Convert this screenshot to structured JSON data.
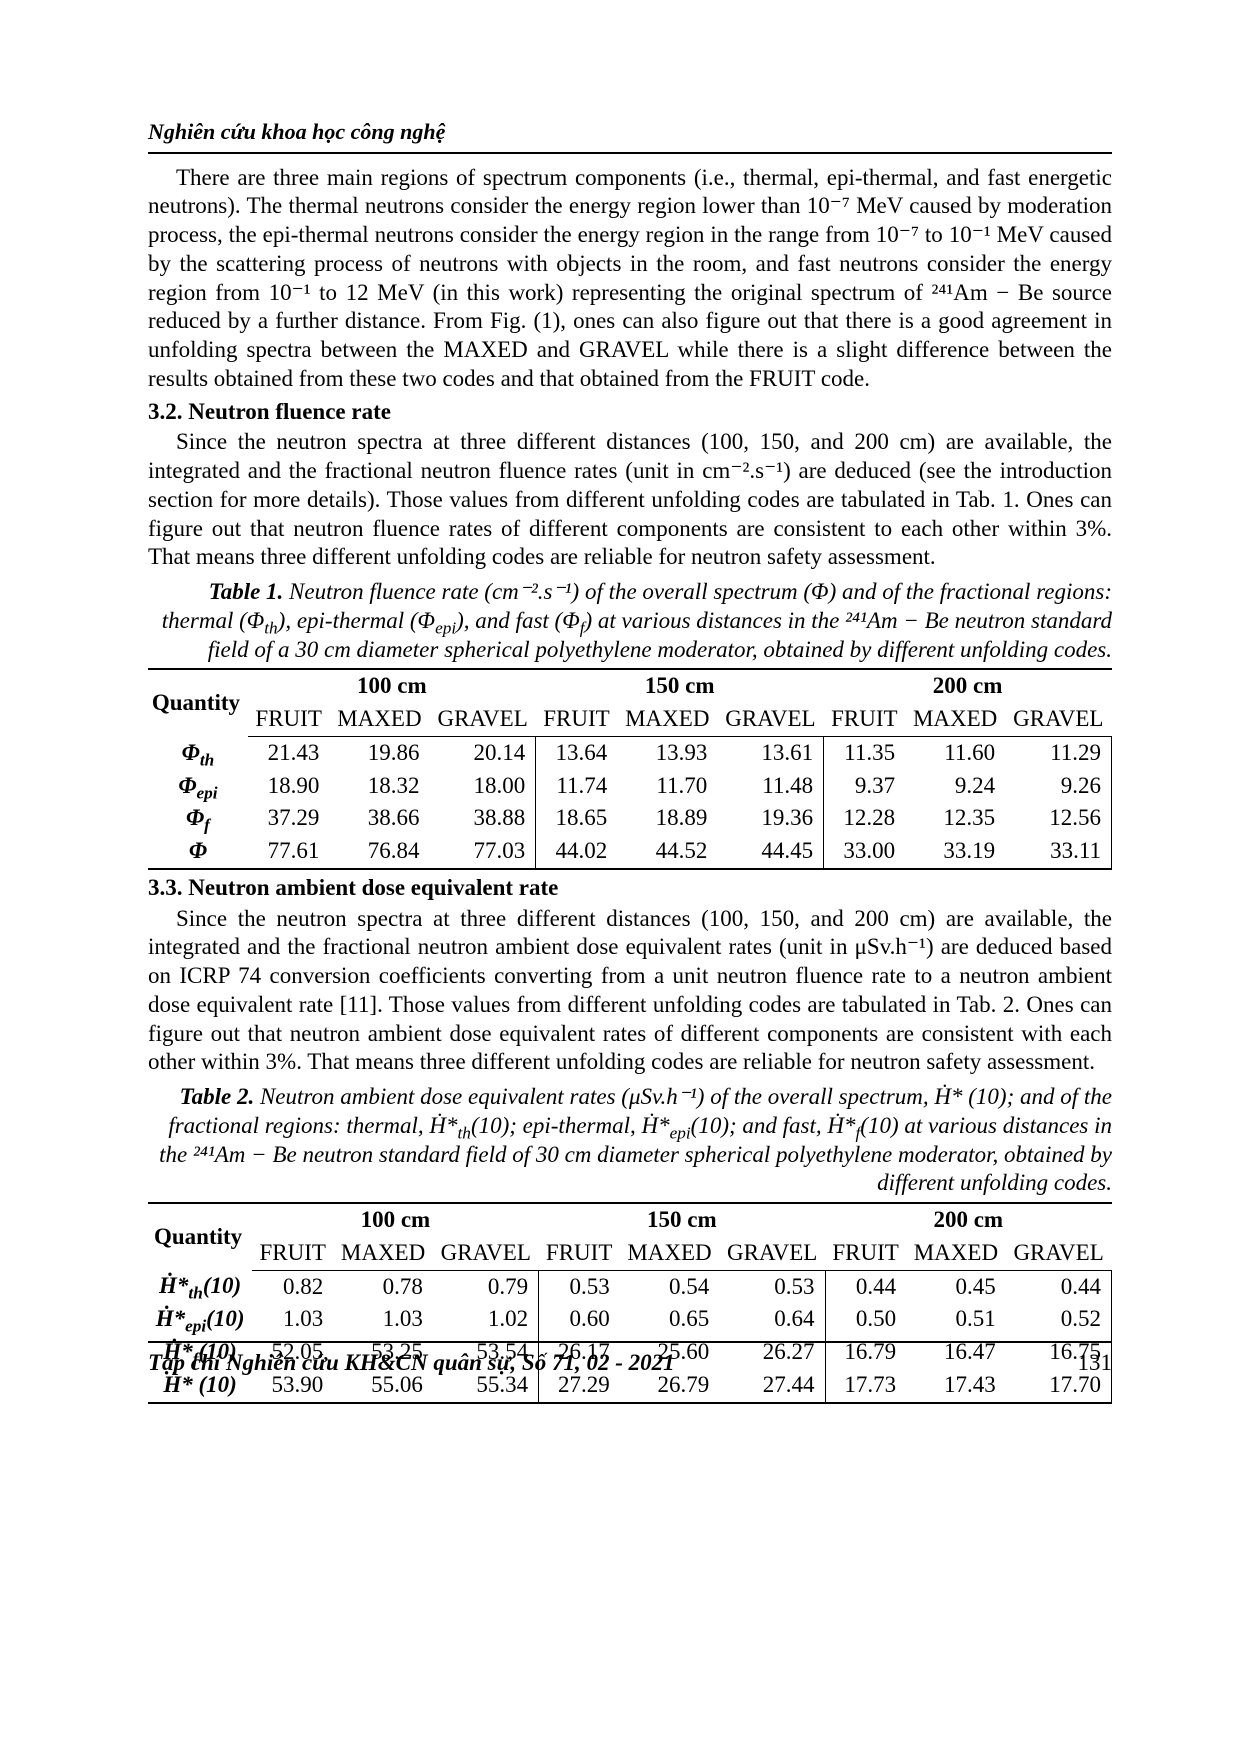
{
  "header": "Nghiên cứu khoa học công nghệ",
  "para1": "There are three main regions of spectrum components (i.e., thermal, epi-thermal, and fast energetic neutrons). The thermal neutrons consider the energy region lower than 10⁻⁷ MeV caused by moderation process, the epi-thermal neutrons consider the energy region in the range from 10⁻⁷ to 10⁻¹ MeV caused by the scattering process of neutrons with objects in the room, and fast neutrons consider the energy region from 10⁻¹ to 12 MeV (in this work) representing the original spectrum of ²⁴¹Am − Be source reduced by a further distance. From Fig. (1), ones can also figure out that there is a good agreement in unfolding spectra between the MAXED and GRAVEL while there is a slight difference between the results obtained from these two codes and that obtained from the FRUIT code.",
  "sec32_head": "3.2. Neutron fluence rate",
  "sec32_para": "Since the neutron spectra at three different distances (100, 150, and 200 cm) are available, the integrated and the fractional neutron fluence rates (unit in cm⁻².s⁻¹) are deduced (see the introduction section for more details). Those values from different unfolding codes are tabulated in Tab. 1. Ones can figure out that neutron fluence rates of different components are consistent to each other within 3%. That means three different unfolding codes are reliable for neutron safety assessment.",
  "table1_caption_html": "<span class='lead'>Table 1.</span> Neutron fluence rate (cm⁻².s⁻¹) of the overall spectrum (Φ) and of the fractional regions: thermal (Φ<sub>th</sub>), epi-thermal (Φ<sub>epi</sub>), and fast (Φ<sub>f</sub>) at various distances in the ²⁴¹Am − Be neutron standard field of a 30 cm diameter spherical polyethylene moderator, obtained by different unfolding codes.",
  "distances": [
    "100 cm",
    "150 cm",
    "200 cm"
  ],
  "codes": [
    "FRUIT",
    "MAXED",
    "GRAVEL"
  ],
  "quantity_label": "Quantity",
  "table1": {
    "row_labels_html": [
      "Φ<sub>th</sub>",
      "Φ<sub>epi</sub>",
      "Φ<sub>f</sub>",
      "Φ"
    ],
    "rows": [
      [
        "21.43",
        "19.86",
        "20.14",
        "13.64",
        "13.93",
        "13.61",
        "11.35",
        "11.60",
        "11.29"
      ],
      [
        "18.90",
        "18.32",
        "18.00",
        "11.74",
        "11.70",
        "11.48",
        "9.37",
        "9.24",
        "9.26"
      ],
      [
        "37.29",
        "38.66",
        "38.88",
        "18.65",
        "18.89",
        "19.36",
        "12.28",
        "12.35",
        "12.56"
      ],
      [
        "77.61",
        "76.84",
        "77.03",
        "44.02",
        "44.52",
        "44.45",
        "33.00",
        "33.19",
        "33.11"
      ]
    ]
  },
  "sec33_head": "3.3. Neutron ambient dose equivalent rate",
  "sec33_para": "Since the neutron spectra at three different distances (100, 150, and 200 cm) are available, the integrated and the fractional neutron ambient dose equivalent rates (unit in μSv.h⁻¹) are deduced based on ICRP 74 conversion coefficients converting from a unit neutron fluence rate to a neutron ambient dose equivalent rate [11]. Those values from different unfolding codes are tabulated in Tab. 2. Ones can figure out that neutron ambient dose equivalent rates of different components are consistent with each other within 3%. That means three different unfolding codes are reliable for neutron safety assessment.",
  "table2_caption_html": "<span class='lead'>Table 2.</span> Neutron ambient dose equivalent rates (μSv.h⁻¹) of the overall spectrum, Ḣ* (10); and of the fractional regions: thermal, Ḣ*<sub>th</sub>(10); epi-thermal, Ḣ*<sub>epi</sub>(10); and fast, Ḣ*<sub>f</sub>(10) at various distances in the ²⁴¹Am − Be neutron standard field of 30 cm diameter spherical polyethylene moderator, obtained by different unfolding codes.",
  "table2": {
    "row_labels_html": [
      "Ḣ*<sub>th</sub>(10)",
      "Ḣ*<sub>epi</sub>(10)",
      "Ḣ*<sub>f</sub>(10)",
      "Ḣ* (10)"
    ],
    "rows": [
      [
        "0.82",
        "0.78",
        "0.79",
        "0.53",
        "0.54",
        "0.53",
        "0.44",
        "0.45",
        "0.44"
      ],
      [
        "1.03",
        "1.03",
        "1.02",
        "0.60",
        "0.65",
        "0.64",
        "0.50",
        "0.51",
        "0.52"
      ],
      [
        "52.05",
        "53.25",
        "53.54",
        "26.17",
        "25.60",
        "26.27",
        "16.79",
        "16.47",
        "16.75"
      ],
      [
        "53.90",
        "55.06",
        "55.34",
        "27.29",
        "26.79",
        "27.44",
        "17.73",
        "17.43",
        "17.70"
      ]
    ]
  },
  "footer_left": "Tạp chí Nghiên cứu KH&CN quân sự, Số 71, 02 - 2021",
  "page_number": "131"
}
